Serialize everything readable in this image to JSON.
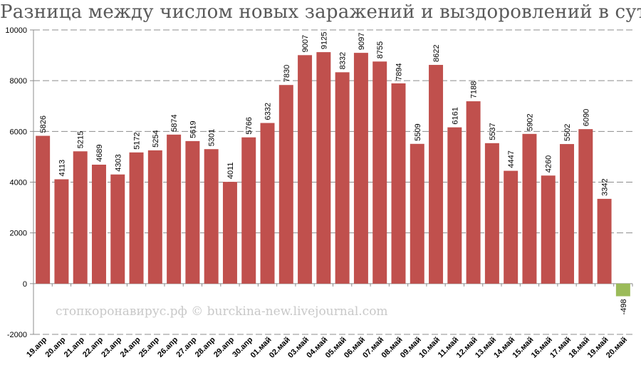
{
  "chart_data": {
    "type": "bar",
    "title": "Разница между числом новых заражений и выздоровлений в сутки",
    "xlabel": "",
    "ylabel": "",
    "ylim": [
      -2000,
      10000
    ],
    "yticks": [
      -2000,
      0,
      2000,
      4000,
      6000,
      8000,
      10000
    ],
    "grid": true,
    "legend": "none",
    "categories": [
      "19.апр",
      "20.апр",
      "21.апр",
      "22.апр",
      "23.апр",
      "24.апр",
      "25.апр",
      "26.апр",
      "27.апр",
      "28.апр",
      "29.апр",
      "30.апр",
      "01.май",
      "02.май",
      "03.май",
      "04.май",
      "05.май",
      "06.май",
      "07.май",
      "08.май",
      "09.май",
      "10.май",
      "11.май",
      "12.май",
      "13.май",
      "14.май",
      "15.май",
      "16.май",
      "17.май",
      "18.май",
      "19.май",
      "20.май"
    ],
    "series": [
      {
        "values": [
          5826,
          4113,
          5215,
          4689,
          4303,
          5172,
          5254,
          5874,
          5619,
          5301,
          4011,
          5766,
          6332,
          7830,
          9007,
          9125,
          8332,
          9097,
          8755,
          7894,
          5509,
          8622,
          6161,
          7188,
          5537,
          4447,
          5902,
          4260,
          5502,
          6090,
          3342,
          -498
        ]
      }
    ],
    "colors": {
      "positive": "#c0504d",
      "negative": "#9bbb59"
    },
    "watermark": "стопкоронавирус.рф © burckina-new.livejournal.com"
  }
}
